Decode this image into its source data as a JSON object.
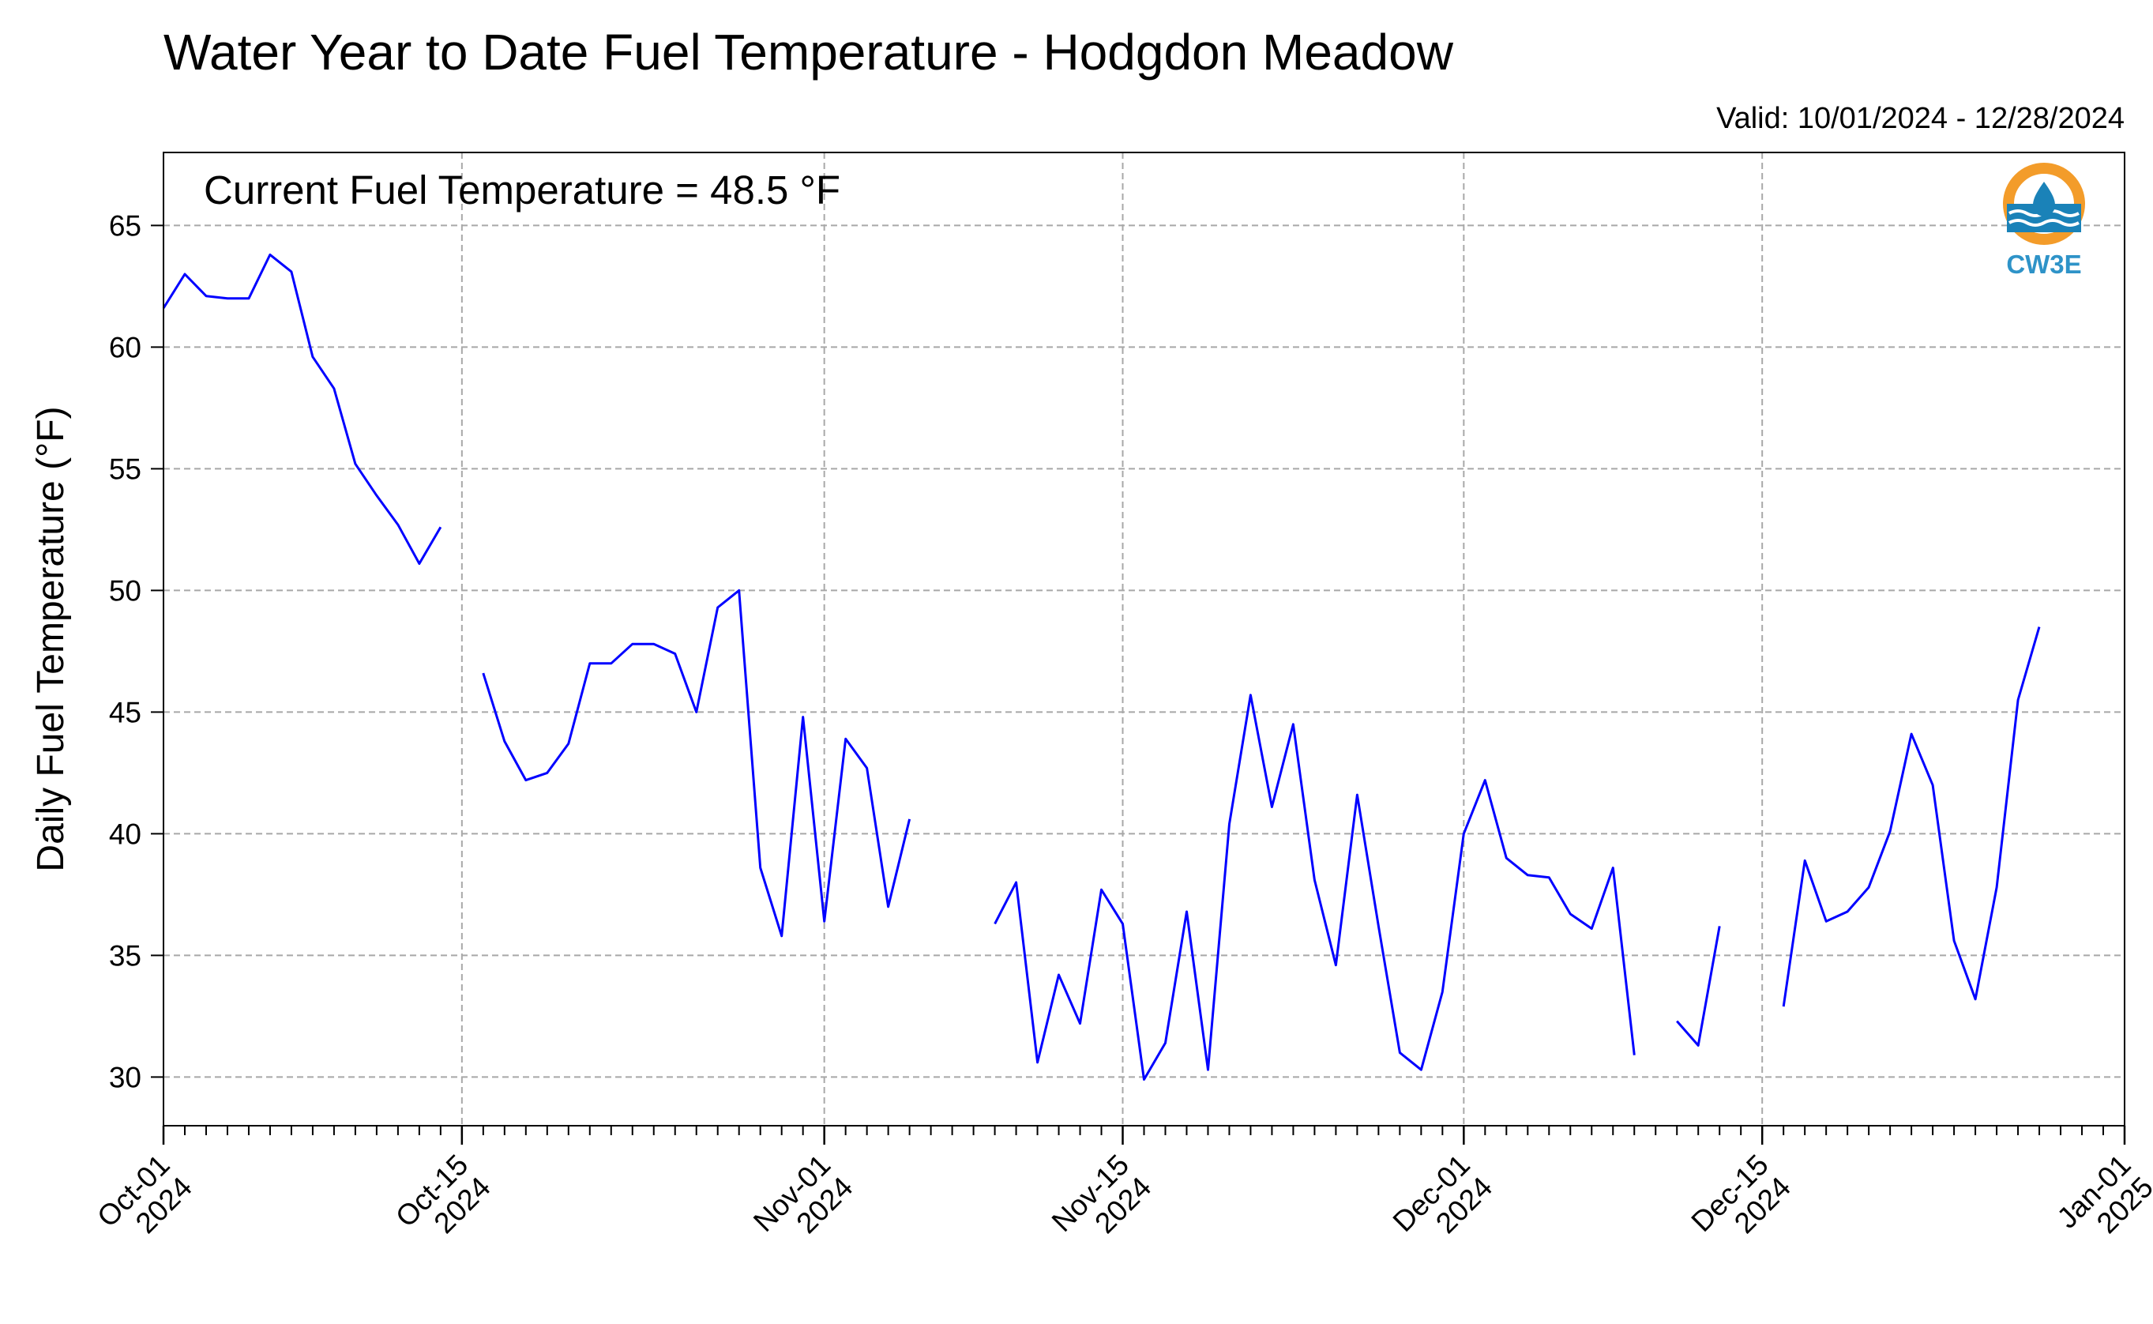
{
  "chart_data": {
    "type": "line",
    "title": "Water Year to Date Fuel Temperature - Hodgdon Meadow",
    "subtitle": "Valid: 10/01/2024 - 12/28/2024",
    "annotation": "Current Fuel Temperature = 48.5 °F",
    "ylabel": "Daily Fuel Temperature (°F)",
    "xlabel": "",
    "xlim": [
      "2024-10-01",
      "2025-01-01"
    ],
    "ylim": [
      28,
      68
    ],
    "yticks": [
      30,
      35,
      40,
      45,
      50,
      55,
      60,
      65
    ],
    "xticks": [
      {
        "date": "2024-10-01",
        "line1": "Oct-01",
        "line2": "2024"
      },
      {
        "date": "2024-10-15",
        "line1": "Oct-15",
        "line2": "2024"
      },
      {
        "date": "2024-11-01",
        "line1": "Nov-01",
        "line2": "2024"
      },
      {
        "date": "2024-11-15",
        "line1": "Nov-15",
        "line2": "2024"
      },
      {
        "date": "2024-12-01",
        "line1": "Dec-01",
        "line2": "2024"
      },
      {
        "date": "2024-12-15",
        "line1": "Dec-15",
        "line2": "2024"
      },
      {
        "date": "2025-01-01",
        "line1": "Jan-01",
        "line2": "2025"
      }
    ],
    "grid": true,
    "line_color": "#0000ff",
    "series": [
      {
        "color": "#0000ff",
        "points": [
          [
            "2024-10-01",
            61.6
          ],
          [
            "2024-10-02",
            63.0
          ],
          [
            "2024-10-03",
            62.1
          ],
          [
            "2024-10-04",
            62.0
          ],
          [
            "2024-10-05",
            62.0
          ],
          [
            "2024-10-06",
            63.8
          ],
          [
            "2024-10-07",
            63.1
          ],
          [
            "2024-10-08",
            59.6
          ],
          [
            "2024-10-09",
            58.3
          ],
          [
            "2024-10-10",
            55.2
          ],
          [
            "2024-10-11",
            53.9
          ],
          [
            "2024-10-12",
            52.7
          ],
          [
            "2024-10-13",
            51.1
          ],
          [
            "2024-10-14",
            52.6
          ],
          [
            "2024-10-15",
            null
          ],
          [
            "2024-10-16",
            46.6
          ],
          [
            "2024-10-17",
            43.8
          ],
          [
            "2024-10-18",
            42.2
          ],
          [
            "2024-10-19",
            42.5
          ],
          [
            "2024-10-20",
            43.7
          ],
          [
            "2024-10-21",
            47.0
          ],
          [
            "2024-10-22",
            47.0
          ],
          [
            "2024-10-23",
            47.8
          ],
          [
            "2024-10-24",
            47.8
          ],
          [
            "2024-10-25",
            47.4
          ],
          [
            "2024-10-26",
            45.0
          ],
          [
            "2024-10-27",
            49.3
          ],
          [
            "2024-10-28",
            50.0
          ],
          [
            "2024-10-29",
            38.6
          ],
          [
            "2024-10-30",
            35.8
          ],
          [
            "2024-10-31",
            44.8
          ],
          [
            "2024-11-01",
            36.4
          ],
          [
            "2024-11-02",
            43.9
          ],
          [
            "2024-11-03",
            42.7
          ],
          [
            "2024-11-04",
            37.0
          ],
          [
            "2024-11-05",
            40.6
          ],
          [
            "2024-11-06",
            null
          ],
          [
            "2024-11-09",
            36.3
          ],
          [
            "2024-11-10",
            38.0
          ],
          [
            "2024-11-11",
            30.6
          ],
          [
            "2024-11-12",
            34.2
          ],
          [
            "2024-11-13",
            32.2
          ],
          [
            "2024-11-14",
            37.7
          ],
          [
            "2024-11-15",
            36.3
          ],
          [
            "2024-11-16",
            29.9
          ],
          [
            "2024-11-17",
            31.4
          ],
          [
            "2024-11-18",
            36.8
          ],
          [
            "2024-11-19",
            30.3
          ],
          [
            "2024-11-20",
            40.4
          ],
          [
            "2024-11-21",
            45.7
          ],
          [
            "2024-11-22",
            41.1
          ],
          [
            "2024-11-23",
            44.5
          ],
          [
            "2024-11-24",
            38.1
          ],
          [
            "2024-11-25",
            34.6
          ],
          [
            "2024-11-26",
            41.6
          ],
          [
            "2024-11-27",
            36.2
          ],
          [
            "2024-11-28",
            31.0
          ],
          [
            "2024-11-29",
            30.3
          ],
          [
            "2024-11-30",
            33.5
          ],
          [
            "2024-12-01",
            40.0
          ],
          [
            "2024-12-02",
            42.2
          ],
          [
            "2024-12-03",
            39.0
          ],
          [
            "2024-12-04",
            38.3
          ],
          [
            "2024-12-05",
            38.2
          ],
          [
            "2024-12-06",
            36.7
          ],
          [
            "2024-12-07",
            36.1
          ],
          [
            "2024-12-08",
            38.6
          ],
          [
            "2024-12-09",
            30.9
          ],
          [
            "2024-12-10",
            null
          ],
          [
            "2024-12-11",
            32.3
          ],
          [
            "2024-12-12",
            31.3
          ],
          [
            "2024-12-13",
            36.2
          ],
          [
            "2024-12-14",
            null
          ],
          [
            "2024-12-15",
            null
          ],
          [
            "2024-12-16",
            32.9
          ],
          [
            "2024-12-17",
            38.9
          ],
          [
            "2024-12-18",
            36.4
          ],
          [
            "2024-12-19",
            36.8
          ],
          [
            "2024-12-20",
            37.8
          ],
          [
            "2024-12-21",
            40.1
          ],
          [
            "2024-12-22",
            44.1
          ],
          [
            "2024-12-23",
            42.0
          ],
          [
            "2024-12-24",
            35.6
          ],
          [
            "2024-12-25",
            33.2
          ],
          [
            "2024-12-26",
            37.8
          ],
          [
            "2024-12-27",
            45.5
          ],
          [
            "2024-12-28",
            48.5
          ]
        ]
      }
    ]
  },
  "logo": {
    "text": "CW3E",
    "ring_color": "#f39c2a",
    "wave_color": "#1a82b8"
  }
}
